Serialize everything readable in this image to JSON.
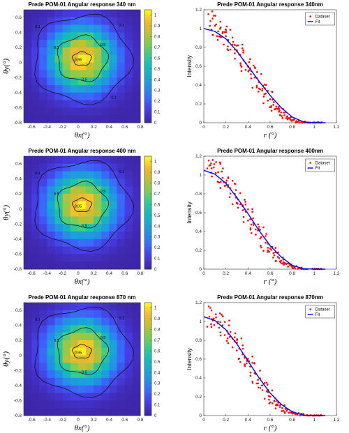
{
  "figure": {
    "rows": [
      {
        "heatmap": {
          "title": "Prede POM-01 Angular response 340 nm",
          "xlabel": "θx(°)",
          "ylabel": "θy(°)",
          "xticks": [
            "-0.6",
            "-0.4",
            "-0.2",
            "0",
            "0.2",
            "0.4",
            "0.6",
            "0.8"
          ],
          "yticks": [
            "0.6",
            "0.4",
            "0.2",
            "0",
            "-0.2",
            "-0.4",
            "-0.6",
            "-0.8"
          ],
          "colorbar_ticks": [
            "1",
            "0.9",
            "0.8",
            "0.7",
            "0.6",
            "0.5",
            "0.4",
            "0.3",
            "0.2",
            "0.1",
            "0"
          ],
          "contour_labels": [
            "0.95",
            "0.5",
            "0.5",
            "0.5",
            "0.1",
            "0.1",
            "0.1"
          ]
        },
        "scatter": {
          "title": "Prede POM-01 Angular response 340nm",
          "xlabel": "r (°)",
          "ylabel": "Intensity",
          "xticks": [
            "0",
            "0.2",
            "0.4",
            "0.6",
            "0.8",
            "1",
            "1.2"
          ],
          "yticks": [
            "1.2",
            "1",
            "0.8",
            "0.6",
            "0.4",
            "0.2",
            "0"
          ],
          "legend": [
            "Dataset",
            "Fit"
          ]
        }
      },
      {
        "heatmap": {
          "title": "Prede POM-01 Angular response 400 nm",
          "xlabel": "θx(°)",
          "ylabel": "θy(°)",
          "xticks": [
            "-0.6",
            "-0.4",
            "-0.2",
            "0",
            "0.2",
            "0.4",
            "0.6",
            "0.8"
          ],
          "yticks": [
            "0.6",
            "0.4",
            "0.2",
            "0",
            "-0.2",
            "-0.4",
            "-0.6",
            "-0.8"
          ],
          "colorbar_ticks": [
            "1",
            "0.9",
            "0.8",
            "0.7",
            "0.6",
            "0.5",
            "0.4",
            "0.3",
            "0.2",
            "0.1",
            "0"
          ],
          "contour_labels": [
            "0.95",
            "0.5",
            "0.5",
            "0.5",
            "0.1",
            "0.1"
          ]
        },
        "scatter": {
          "title": "Prede POM-01 Angular response 400nm",
          "xlabel": "r (°)",
          "ylabel": "Intensity",
          "xticks": [
            "0",
            "0.2",
            "0.4",
            "0.6",
            "0.8",
            "1",
            "1.2"
          ],
          "yticks": [
            "1.2",
            "1",
            "0.8",
            "0.6",
            "0.4",
            "0.2",
            "0"
          ],
          "legend": [
            "Dataset",
            "Fit"
          ]
        }
      },
      {
        "heatmap": {
          "title": "Prede POM-01 Angular response 870 nm",
          "xlabel": "θx(°)",
          "ylabel": "θy(°)",
          "xticks": [
            "-0.6",
            "-0.4",
            "-0.2",
            "0",
            "0.2",
            "0.4",
            "0.6",
            "0.8"
          ],
          "yticks": [
            "0.6",
            "0.4",
            "0.2",
            "0",
            "-0.2",
            "-0.4",
            "-0.6",
            "-0.8"
          ],
          "colorbar_ticks": [
            "1",
            "0.9",
            "0.8",
            "0.7",
            "0.6",
            "0.5",
            "0.4",
            "0.3",
            "0.2",
            "0.1",
            "0"
          ],
          "contour_labels": [
            "0.95",
            "0.5",
            "0.5",
            "0.5",
            "0.1",
            "0.1"
          ]
        },
        "scatter": {
          "title": "Prede POM-01 Angular response 870nm",
          "xlabel": "r (°)",
          "ylabel": "Intensity",
          "xticks": [
            "0",
            "0.2",
            "0.4",
            "0.6",
            "0.8",
            "1",
            "1.2"
          ],
          "yticks": [
            "1.2",
            "1",
            "0.8",
            "0.6",
            "0.4",
            "0.2",
            "0"
          ],
          "legend": [
            "Dataset",
            "Fit"
          ]
        }
      }
    ]
  },
  "chart_data": [
    {
      "type": "heatmap",
      "title": "Prede POM-01 Angular response 340 nm",
      "xlabel": "θx(°)",
      "ylabel": "θy(°)",
      "xlim": [
        -0.7,
        0.8
      ],
      "ylim": [
        -0.8,
        0.7
      ],
      "clim": [
        0,
        1.05
      ],
      "colormap": "parula",
      "center": [
        0.05,
        0.05
      ],
      "contours": [
        0.1,
        0.5,
        0.95
      ],
      "description_of_values": "normalized response peaking ~1 near (0.05, 0.05), decreasing radially to ~0 at corners"
    },
    {
      "type": "scatter",
      "title": "Prede POM-01 Angular response 340nm",
      "xlabel": "r (°)",
      "ylabel": "Intensity",
      "xlim": [
        0,
        1.2
      ],
      "ylim": [
        0,
        1.2
      ],
      "series": [
        {
          "name": "Dataset",
          "color": "#ff0000",
          "x": [
            0.06,
            0.1,
            0.13,
            0.17,
            0.2,
            0.22,
            0.26,
            0.3,
            0.33,
            0.36,
            0.4,
            0.43,
            0.46,
            0.5,
            0.53,
            0.56,
            0.6,
            0.63,
            0.66,
            0.7,
            0.73,
            0.77,
            0.8,
            0.85,
            0.9,
            0.95,
            1.0,
            1.05
          ],
          "y": [
            1.08,
            1.03,
            0.97,
            0.95,
            0.92,
            0.88,
            0.83,
            0.76,
            0.72,
            0.66,
            0.6,
            0.55,
            0.48,
            0.43,
            0.36,
            0.31,
            0.25,
            0.19,
            0.15,
            0.11,
            0.08,
            0.05,
            0.03,
            0.01,
            0.005,
            0.0,
            0.0,
            0.0
          ]
        },
        {
          "name": "Fit",
          "color": "#0000ff",
          "x": [
            0,
            0.1,
            0.2,
            0.3,
            0.4,
            0.5,
            0.6,
            0.7,
            0.8,
            0.9,
            1.0,
            1.1
          ],
          "y": [
            1.0,
            0.97,
            0.89,
            0.76,
            0.6,
            0.44,
            0.29,
            0.16,
            0.06,
            0.01,
            0.0,
            0.0
          ]
        }
      ]
    },
    {
      "type": "heatmap",
      "title": "Prede POM-01 Angular response 400 nm",
      "xlabel": "θx(°)",
      "ylabel": "θy(°)",
      "xlim": [
        -0.7,
        0.8
      ],
      "ylim": [
        -0.8,
        0.7
      ],
      "clim": [
        0,
        1.05
      ],
      "colormap": "parula",
      "center": [
        0.05,
        0.05
      ],
      "contours": [
        0.1,
        0.5,
        0.95
      ]
    },
    {
      "type": "scatter",
      "title": "Prede POM-01 Angular response 400nm",
      "xlabel": "r (°)",
      "ylabel": "Intensity",
      "xlim": [
        0,
        1.2
      ],
      "ylim": [
        0,
        1.2
      ],
      "series": [
        {
          "name": "Dataset",
          "color": "#ff0000",
          "x": [
            0.05,
            0.09,
            0.13,
            0.17,
            0.2,
            0.24,
            0.28,
            0.31,
            0.35,
            0.38,
            0.42,
            0.45,
            0.49,
            0.52,
            0.56,
            0.6,
            0.63,
            0.67,
            0.7,
            0.74,
            0.78,
            0.82,
            0.87,
            0.92,
            1.0,
            1.05
          ],
          "y": [
            1.1,
            1.08,
            1.03,
            0.97,
            0.92,
            0.86,
            0.8,
            0.74,
            0.67,
            0.61,
            0.53,
            0.47,
            0.41,
            0.34,
            0.28,
            0.22,
            0.17,
            0.13,
            0.09,
            0.06,
            0.04,
            0.02,
            0.01,
            0.0,
            0.0,
            0.0
          ]
        },
        {
          "name": "Fit",
          "color": "#0000ff",
          "x": [
            0,
            0.1,
            0.2,
            0.3,
            0.4,
            0.5,
            0.6,
            0.7,
            0.8,
            0.9,
            1.0,
            1.1
          ],
          "y": [
            1.05,
            1.01,
            0.91,
            0.76,
            0.59,
            0.41,
            0.25,
            0.13,
            0.04,
            0.005,
            0.0,
            0.0
          ]
        }
      ]
    },
    {
      "type": "heatmap",
      "title": "Prede POM-01 Angular response 870 nm",
      "xlabel": "θx(°)",
      "ylabel": "θy(°)",
      "xlim": [
        -0.7,
        0.8
      ],
      "ylim": [
        -0.8,
        0.7
      ],
      "clim": [
        0,
        1.05
      ],
      "colormap": "parula",
      "center": [
        0.05,
        0.05
      ],
      "contours": [
        0.1,
        0.5,
        0.95
      ]
    },
    {
      "type": "scatter",
      "title": "Prede POM-01 Angular response 870nm",
      "xlabel": "r (°)",
      "ylabel": "Intensity",
      "xlim": [
        0,
        1.2
      ],
      "ylim": [
        0,
        1.2
      ],
      "series": [
        {
          "name": "Dataset",
          "color": "#ff0000",
          "x": [
            0.05,
            0.09,
            0.13,
            0.17,
            0.21,
            0.24,
            0.28,
            0.32,
            0.35,
            0.39,
            0.42,
            0.46,
            0.49,
            0.53,
            0.57,
            0.6,
            0.64,
            0.67,
            0.71,
            0.75,
            0.79,
            0.84,
            0.89,
            0.95,
            1.0,
            1.05
          ],
          "y": [
            1.05,
            1.03,
            1.0,
            0.96,
            0.9,
            0.84,
            0.79,
            0.71,
            0.65,
            0.58,
            0.52,
            0.45,
            0.38,
            0.32,
            0.26,
            0.2,
            0.15,
            0.11,
            0.08,
            0.05,
            0.03,
            0.02,
            0.01,
            0.0,
            0.0,
            0.0
          ]
        },
        {
          "name": "Fit",
          "color": "#0000ff",
          "x": [
            0,
            0.1,
            0.2,
            0.3,
            0.4,
            0.5,
            0.6,
            0.7,
            0.8,
            0.9,
            1.0,
            1.1
          ],
          "y": [
            1.05,
            1.01,
            0.91,
            0.76,
            0.58,
            0.4,
            0.24,
            0.12,
            0.04,
            0.005,
            0.0,
            0.0
          ]
        }
      ]
    }
  ]
}
